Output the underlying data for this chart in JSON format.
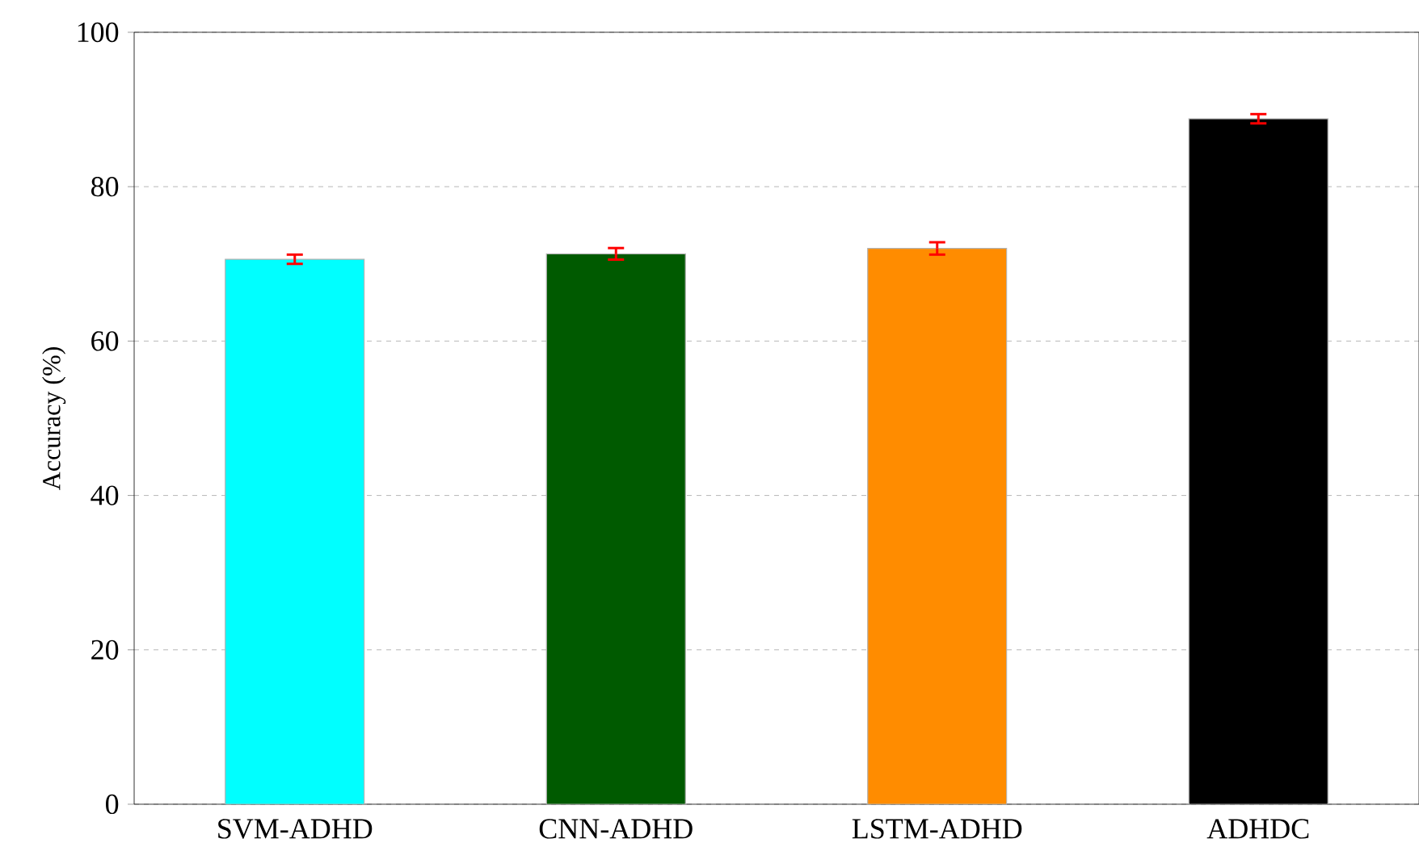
{
  "chart_data": {
    "type": "bar",
    "ylabel": "Accuracy (%)",
    "categories": [
      "SVM-ADHD",
      "CNN-ADHD",
      "LSTM-ADHD",
      "ADHDC"
    ],
    "values": [
      70.6,
      71.3,
      72.0,
      88.8
    ],
    "errors": [
      0.6,
      0.75,
      0.8,
      0.6
    ],
    "colors": [
      "#00ffff",
      "#005a00",
      "#ff8c00",
      "#000000"
    ],
    "ylim": [
      0,
      100
    ],
    "yticks": [
      0,
      20,
      40,
      60,
      80,
      100
    ],
    "grid": "y"
  }
}
